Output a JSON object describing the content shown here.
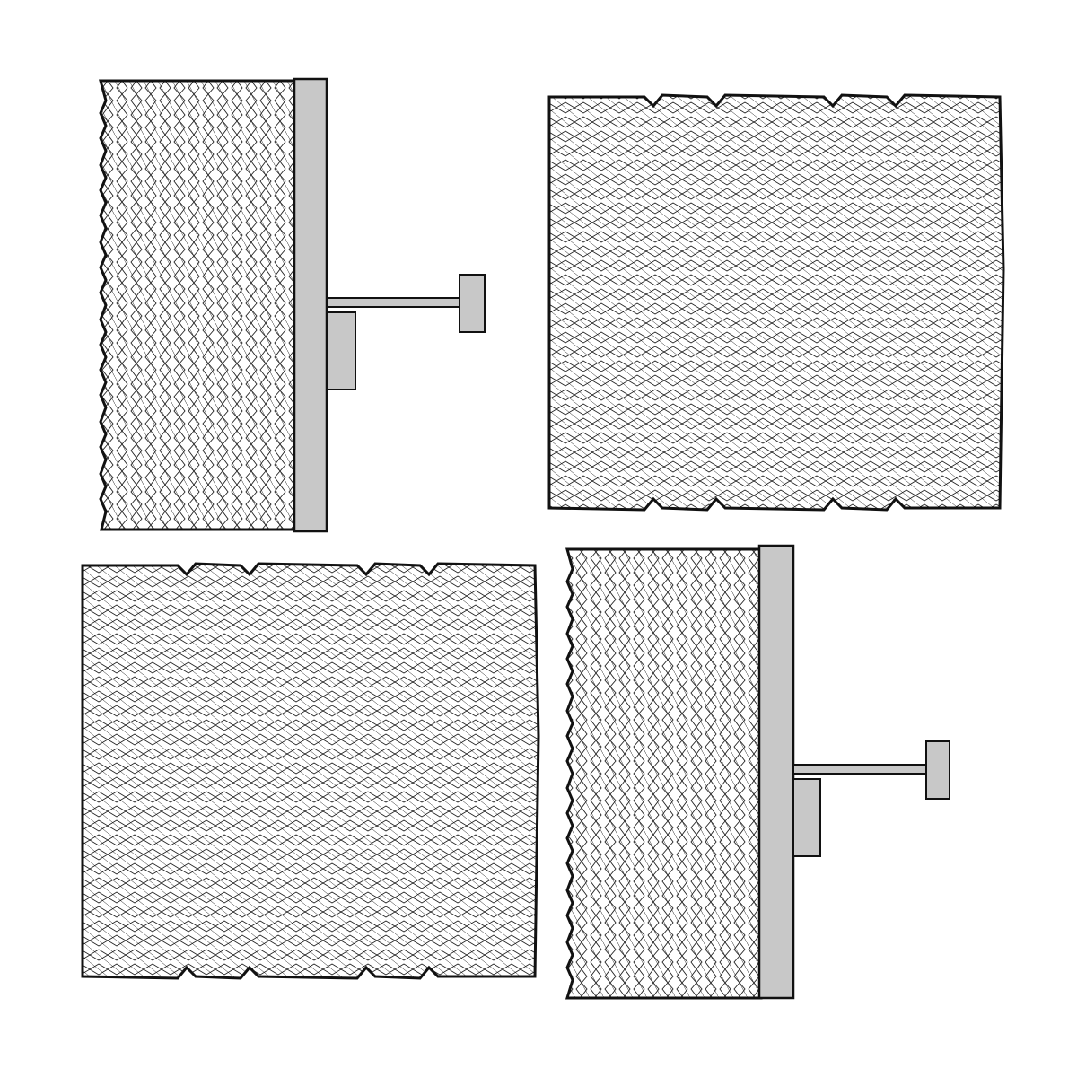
{
  "colors": {
    "background": "#ffffff",
    "outline": "#111111",
    "hatch": "#222222",
    "bracket_fill": "#c8c8c8"
  },
  "views": [
    {
      "name": "side-view",
      "orientation": "side",
      "has_mounting_bracket": true
    },
    {
      "name": "top-view",
      "orientation": "top",
      "has_mounting_bracket": false
    },
    {
      "name": "top-view",
      "orientation": "top",
      "has_mounting_bracket": false
    },
    {
      "name": "side-view",
      "orientation": "side",
      "has_mounting_bracket": true
    }
  ]
}
